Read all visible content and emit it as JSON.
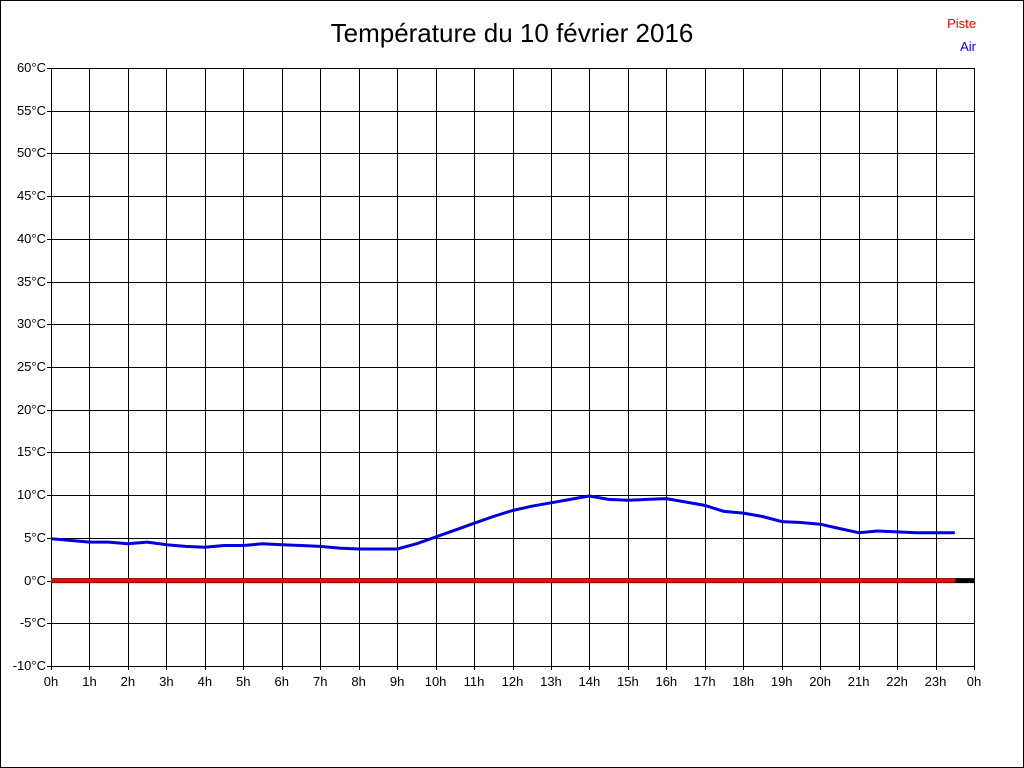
{
  "window": {
    "background": "#ffffff",
    "border_color": "#000000"
  },
  "header": {
    "title": "Température du 10 février 2016"
  },
  "legend": {
    "position": "top-right",
    "items": [
      {
        "label": "Piste",
        "color": "#ff0000"
      },
      {
        "label": "Air",
        "color": "#0000ff"
      }
    ]
  },
  "chart_data": {
    "type": "line",
    "title": "Température du 10 février 2016",
    "xlabel": "",
    "ylabel": "",
    "x_unit": "h",
    "y_unit": "°C",
    "xlim": [
      0,
      24
    ],
    "ylim": [
      -10,
      60
    ],
    "x_tick_step": 1,
    "y_tick_step": 5,
    "grid": true,
    "grid_color": "#000000",
    "x_tick_labels": [
      "0h",
      "1h",
      "2h",
      "3h",
      "4h",
      "5h",
      "6h",
      "7h",
      "8h",
      "9h",
      "10h",
      "11h",
      "12h",
      "13h",
      "14h",
      "15h",
      "16h",
      "17h",
      "18h",
      "19h",
      "20h",
      "21h",
      "22h",
      "23h",
      "0h"
    ],
    "y_tick_labels": [
      "60°C",
      "55°C",
      "50°C",
      "45°C",
      "40°C",
      "35°C",
      "30°C",
      "25°C",
      "20°C",
      "15°C",
      "10°C",
      "5°C",
      "0°C",
      "-5°C",
      "-10°C"
    ],
    "zero_line": {
      "value": 0,
      "color": "#000000",
      "width": 5
    },
    "series": [
      {
        "name": "Piste",
        "color": "#ff0000",
        "width": 4,
        "x": [
          0,
          23.5
        ],
        "values": [
          0,
          0
        ]
      },
      {
        "name": "Air",
        "color": "#0000dd",
        "width": 3,
        "x": [
          0,
          0.5,
          1,
          1.5,
          2,
          2.5,
          3,
          3.5,
          4,
          4.5,
          5,
          5.5,
          6,
          6.5,
          7,
          7.5,
          8,
          8.5,
          9,
          9.5,
          10,
          10.5,
          11,
          11.5,
          12,
          12.5,
          13,
          13.5,
          14,
          14.5,
          15,
          15.5,
          16,
          16.5,
          17,
          17.5,
          18,
          18.5,
          19,
          19.5,
          20,
          20.5,
          21,
          21.5,
          22,
          22.5,
          23,
          23.5
        ],
        "values": [
          4.9,
          4.7,
          4.5,
          4.5,
          4.3,
          4.5,
          4.2,
          4.0,
          3.9,
          4.1,
          4.1,
          4.3,
          4.2,
          4.1,
          4.0,
          3.8,
          3.7,
          3.7,
          3.7,
          4.3,
          5.1,
          5.9,
          6.7,
          7.5,
          8.2,
          8.7,
          9.1,
          9.5,
          9.9,
          9.5,
          9.4,
          9.5,
          9.6,
          9.2,
          8.8,
          8.1,
          7.9,
          7.5,
          6.9,
          6.8,
          6.6,
          6.1,
          5.6,
          5.8,
          5.7,
          5.6,
          5.6,
          5.6
        ]
      }
    ]
  }
}
